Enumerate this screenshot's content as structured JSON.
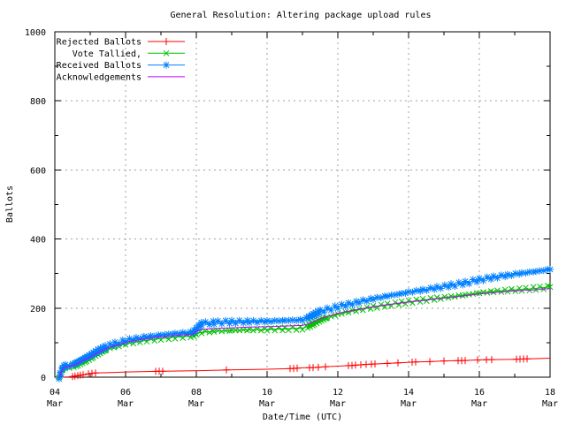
{
  "chart_data": {
    "type": "line",
    "title": "General Resolution: Altering package upload rules",
    "xlabel": "Date/Time (UTC)",
    "ylabel": "Ballots",
    "x_unit": "day of March (UTC)",
    "xlim": [
      4,
      18
    ],
    "ylim": [
      0,
      1000
    ],
    "x_minor_step": 1,
    "y_minor_step": 100,
    "grid": true,
    "legend_position": "top-left-inside",
    "colors": {
      "background": "#ffffff",
      "border": "#000000",
      "grid": "#a0a0a0",
      "text": "#000000"
    },
    "x_ticks": [
      {
        "value": 4,
        "day": "04",
        "month": "Mar"
      },
      {
        "value": 6,
        "day": "06",
        "month": "Mar"
      },
      {
        "value": 8,
        "day": "08",
        "month": "Mar"
      },
      {
        "value": 10,
        "day": "10",
        "month": "Mar"
      },
      {
        "value": 12,
        "day": "12",
        "month": "Mar"
      },
      {
        "value": 14,
        "day": "14",
        "month": "Mar"
      },
      {
        "value": 16,
        "day": "16",
        "month": "Mar"
      },
      {
        "value": 18,
        "day": "18",
        "month": "Mar"
      }
    ],
    "y_ticks": [
      {
        "value": 0,
        "label": "0"
      },
      {
        "value": 200,
        "label": "200"
      },
      {
        "value": 400,
        "label": "400"
      },
      {
        "value": 600,
        "label": "600"
      },
      {
        "value": 800,
        "label": "800"
      },
      {
        "value": 1000,
        "label": "1000"
      }
    ],
    "series": [
      {
        "name": "Rejected Ballots",
        "color": "#ff0000",
        "marker": "plus",
        "points": [
          [
            4.2,
            0
          ],
          [
            4.4,
            1
          ],
          [
            4.5,
            2
          ],
          [
            4.6,
            4
          ],
          [
            4.75,
            6
          ],
          [
            4.9,
            9
          ],
          [
            5.1,
            12
          ],
          [
            5.5,
            13
          ],
          [
            6.0,
            15
          ],
          [
            6.9,
            17
          ],
          [
            7.5,
            18
          ],
          [
            8.1,
            19
          ],
          [
            8.9,
            21
          ],
          [
            9.5,
            22
          ],
          [
            10.0,
            23
          ],
          [
            10.7,
            25
          ],
          [
            11.0,
            27
          ],
          [
            11.3,
            28
          ],
          [
            11.6,
            30
          ],
          [
            12.0,
            32
          ],
          [
            12.4,
            34
          ],
          [
            12.8,
            37
          ],
          [
            13.4,
            40
          ],
          [
            13.8,
            42
          ],
          [
            14.2,
            44
          ],
          [
            14.6,
            45
          ],
          [
            15.0,
            47
          ],
          [
            15.5,
            48
          ],
          [
            16.0,
            50
          ],
          [
            16.4,
            51
          ],
          [
            17.0,
            52
          ],
          [
            17.4,
            53
          ],
          [
            18.0,
            55
          ]
        ],
        "marker_days": [
          4.5,
          4.57,
          4.65,
          4.72,
          4.8,
          4.95,
          5.05,
          5.15,
          6.85,
          6.95,
          7.05,
          8.85,
          10.65,
          10.75,
          10.85,
          11.2,
          11.3,
          11.45,
          11.65,
          12.3,
          12.4,
          12.5,
          12.65,
          12.8,
          12.95,
          13.05,
          13.4,
          13.7,
          14.1,
          14.2,
          14.6,
          15.0,
          15.4,
          15.5,
          15.6,
          15.95,
          16.2,
          16.35,
          17.05,
          17.15,
          17.25,
          17.35
        ]
      },
      {
        "name": "Vote Tallied,",
        "color": "#00c000",
        "marker": "cross",
        "points": [
          [
            4.12,
            0
          ],
          [
            4.17,
            10
          ],
          [
            4.22,
            23
          ],
          [
            4.3,
            28
          ],
          [
            4.5,
            31
          ],
          [
            4.62,
            36
          ],
          [
            4.75,
            43
          ],
          [
            4.9,
            50
          ],
          [
            5.05,
            58
          ],
          [
            5.25,
            69
          ],
          [
            5.45,
            79
          ],
          [
            5.7,
            88
          ],
          [
            6.0,
            96
          ],
          [
            6.3,
            102
          ],
          [
            6.6,
            107
          ],
          [
            7.0,
            112
          ],
          [
            7.4,
            116
          ],
          [
            7.9,
            120
          ],
          [
            8.0,
            126
          ],
          [
            8.15,
            130
          ],
          [
            8.5,
            133
          ],
          [
            9.0,
            135
          ],
          [
            9.5,
            137
          ],
          [
            10.0,
            138
          ],
          [
            10.5,
            140
          ],
          [
            11.0,
            142
          ],
          [
            11.15,
            147
          ],
          [
            11.3,
            154
          ],
          [
            11.5,
            164
          ],
          [
            11.7,
            172
          ],
          [
            12.0,
            182
          ],
          [
            12.3,
            189
          ],
          [
            12.6,
            195
          ],
          [
            13.0,
            203
          ],
          [
            13.4,
            209
          ],
          [
            13.8,
            215
          ],
          [
            14.0,
            218
          ],
          [
            14.4,
            223
          ],
          [
            14.8,
            228
          ],
          [
            15.2,
            233
          ],
          [
            15.6,
            238
          ],
          [
            16.0,
            244
          ],
          [
            16.4,
            248
          ],
          [
            16.8,
            251
          ],
          [
            17.2,
            254
          ],
          [
            17.6,
            257
          ],
          [
            18.0,
            261
          ]
        ]
      },
      {
        "name": "Received Ballots",
        "color": "#0080ff",
        "marker": "asterisk",
        "points": [
          [
            4.12,
            0
          ],
          [
            4.17,
            12
          ],
          [
            4.22,
            28
          ],
          [
            4.3,
            33
          ],
          [
            4.5,
            36
          ],
          [
            4.62,
            42
          ],
          [
            4.75,
            50
          ],
          [
            4.9,
            58
          ],
          [
            5.05,
            66
          ],
          [
            5.25,
            78
          ],
          [
            5.45,
            88
          ],
          [
            5.7,
            97
          ],
          [
            6.0,
            106
          ],
          [
            6.3,
            112
          ],
          [
            6.6,
            117
          ],
          [
            7.0,
            122
          ],
          [
            7.4,
            126
          ],
          [
            7.9,
            130
          ],
          [
            8.0,
            140
          ],
          [
            8.15,
            155
          ],
          [
            8.5,
            158
          ],
          [
            9.0,
            160
          ],
          [
            9.5,
            161
          ],
          [
            10.0,
            162
          ],
          [
            10.5,
            164
          ],
          [
            11.0,
            166
          ],
          [
            11.15,
            172
          ],
          [
            11.3,
            180
          ],
          [
            11.5,
            190
          ],
          [
            11.7,
            196
          ],
          [
            12.0,
            204
          ],
          [
            12.3,
            211
          ],
          [
            12.6,
            218
          ],
          [
            13.0,
            227
          ],
          [
            13.4,
            235
          ],
          [
            13.8,
            242
          ],
          [
            14.0,
            246
          ],
          [
            14.4,
            252
          ],
          [
            14.8,
            259
          ],
          [
            15.2,
            266
          ],
          [
            15.6,
            273
          ],
          [
            16.0,
            282
          ],
          [
            16.4,
            289
          ],
          [
            16.8,
            295
          ],
          [
            17.2,
            301
          ],
          [
            17.6,
            306
          ],
          [
            18.0,
            312
          ]
        ]
      },
      {
        "name": "Acknowledgements",
        "color": "#c000ff",
        "marker": "none",
        "points": [
          [
            4.12,
            0
          ],
          [
            4.17,
            11
          ],
          [
            4.22,
            25
          ],
          [
            4.3,
            30
          ],
          [
            4.5,
            33
          ],
          [
            4.62,
            39
          ],
          [
            4.75,
            46
          ],
          [
            4.9,
            54
          ],
          [
            5.05,
            62
          ],
          [
            5.25,
            73
          ],
          [
            5.45,
            83
          ],
          [
            5.7,
            92
          ],
          [
            6.0,
            101
          ],
          [
            6.3,
            107
          ],
          [
            6.6,
            112
          ],
          [
            7.0,
            117
          ],
          [
            7.4,
            121
          ],
          [
            7.9,
            125
          ],
          [
            8.0,
            133
          ],
          [
            8.15,
            138
          ],
          [
            8.5,
            141
          ],
          [
            9.0,
            143
          ],
          [
            9.5,
            145
          ],
          [
            10.0,
            146
          ],
          [
            10.5,
            148
          ],
          [
            11.0,
            150
          ],
          [
            11.15,
            154
          ],
          [
            11.3,
            160
          ],
          [
            11.5,
            169
          ],
          [
            11.7,
            176
          ],
          [
            12.0,
            185
          ],
          [
            12.3,
            191
          ],
          [
            12.6,
            197
          ],
          [
            13.0,
            204
          ],
          [
            13.4,
            210
          ],
          [
            13.8,
            215
          ],
          [
            14.0,
            218
          ],
          [
            14.4,
            222
          ],
          [
            14.8,
            227
          ],
          [
            15.2,
            231
          ],
          [
            15.6,
            236
          ],
          [
            16.0,
            241
          ],
          [
            16.4,
            245
          ],
          [
            16.8,
            248
          ],
          [
            17.2,
            251
          ],
          [
            17.6,
            253
          ],
          [
            18.0,
            257
          ]
        ]
      }
    ]
  }
}
